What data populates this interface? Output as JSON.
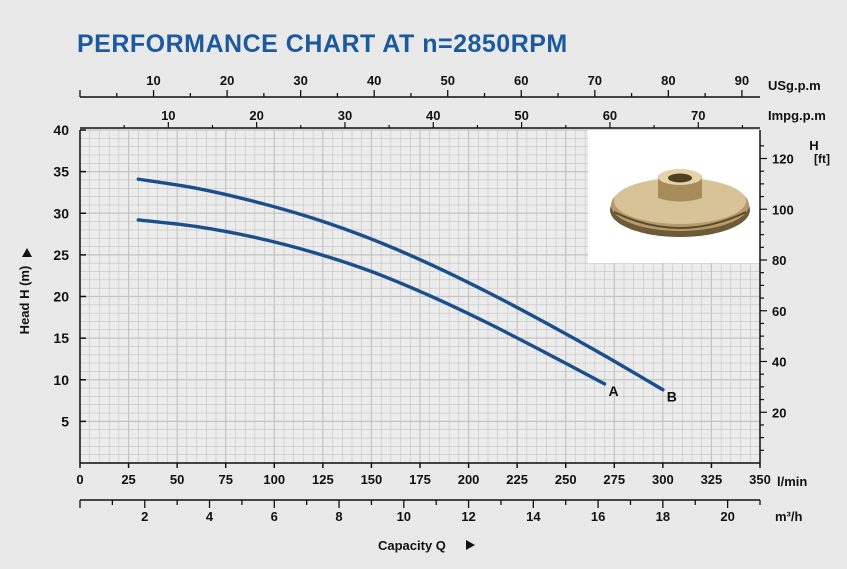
{
  "chart_data": {
    "type": "line",
    "title": "PERFORMANCE CHART AT n=2850RPM",
    "x": [
      30,
      60,
      90,
      120,
      150,
      180,
      210,
      240,
      270,
      300
    ],
    "series": [
      {
        "name": "A",
        "x": [
          30,
          60,
          90,
          120,
          150,
          180,
          210,
          240,
          270
        ],
        "values": [
          29.2,
          28.4,
          27.1,
          25.3,
          23.0,
          20.1,
          16.8,
          13.2,
          9.5
        ],
        "color": "#1a4f8c"
      },
      {
        "name": "B",
        "x": [
          30,
          60,
          90,
          120,
          150,
          180,
          210,
          240,
          270,
          300
        ],
        "values": [
          34.1,
          33.0,
          31.4,
          29.4,
          26.9,
          23.9,
          20.5,
          16.8,
          12.9,
          8.8
        ],
        "color": "#1a4f8c"
      }
    ],
    "xlabel": "Capacity Q",
    "ylabel": "Head H (m)",
    "xlim": [
      0,
      350
    ],
    "ylim": [
      0,
      40
    ],
    "grid": true,
    "x_ticks": [
      0,
      25,
      50,
      75,
      100,
      125,
      150,
      175,
      200,
      225,
      250,
      275,
      300,
      325,
      350
    ],
    "x_unit": "l/min",
    "y_ticks": [
      5,
      10,
      15,
      20,
      25,
      30,
      35,
      40
    ],
    "y_ft_label": "H",
    "y_ft_unit": "[ft]",
    "y_ft_ticks": [
      20,
      40,
      60,
      80,
      100,
      120
    ],
    "m3h_unit": "m³/h",
    "m3h_ticks": [
      2,
      4,
      6,
      8,
      10,
      12,
      14,
      16,
      18,
      20
    ],
    "usgpm_unit": "USg.p.m",
    "usgpm_ticks": [
      10,
      20,
      30,
      40,
      50,
      60,
      70,
      80,
      90
    ],
    "impgpm_unit": "Impg.p.m",
    "impgpm_ticks": [
      10,
      20,
      30,
      40,
      50,
      60,
      70
    ],
    "colors": {
      "title": "#1b5a9e",
      "curve": "#1a4f8c",
      "grid": "#c4c4c4",
      "plot_bg": "#ececec"
    }
  }
}
